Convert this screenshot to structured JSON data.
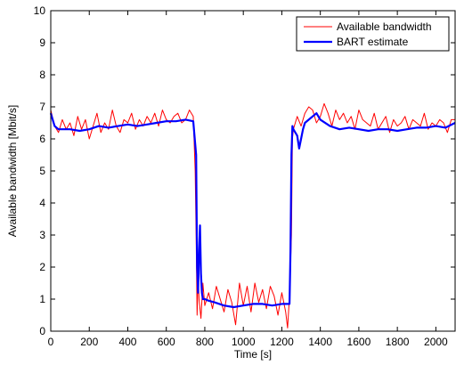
{
  "chart_data": {
    "type": "line",
    "title": "",
    "xlabel": "Time [s]",
    "ylabel": "Available bandwidth [Mbit/s]",
    "xlim": [
      0,
      2100
    ],
    "ylim": [
      0,
      10
    ],
    "xticks": [
      0,
      200,
      400,
      600,
      800,
      1000,
      1200,
      1400,
      1600,
      1800,
      2000
    ],
    "yticks": [
      0,
      1,
      2,
      3,
      4,
      5,
      6,
      7,
      8,
      9,
      10
    ],
    "grid": false,
    "legend_position": "top-right",
    "series": [
      {
        "name": "Available bandwidth",
        "color": "#ff0000",
        "x": [
          0,
          20,
          40,
          60,
          80,
          100,
          120,
          140,
          160,
          180,
          200,
          220,
          240,
          260,
          280,
          300,
          320,
          340,
          360,
          380,
          400,
          420,
          440,
          460,
          480,
          500,
          520,
          540,
          560,
          580,
          600,
          620,
          640,
          660,
          680,
          700,
          720,
          740,
          750,
          755,
          760,
          765,
          770,
          780,
          790,
          800,
          820,
          840,
          860,
          880,
          900,
          920,
          940,
          960,
          980,
          1000,
          1020,
          1040,
          1060,
          1080,
          1100,
          1120,
          1140,
          1160,
          1180,
          1200,
          1220,
          1230,
          1240,
          1250,
          1255,
          1260,
          1270,
          1280,
          1300,
          1320,
          1340,
          1360,
          1380,
          1400,
          1420,
          1440,
          1460,
          1480,
          1500,
          1520,
          1540,
          1560,
          1580,
          1600,
          1620,
          1640,
          1660,
          1680,
          1700,
          1720,
          1740,
          1760,
          1780,
          1800,
          1820,
          1840,
          1860,
          1880,
          1900,
          1920,
          1940,
          1960,
          1980,
          2000,
          2020,
          2040,
          2060,
          2080,
          2100
        ],
        "y": [
          6.9,
          6.4,
          6.2,
          6.6,
          6.3,
          6.5,
          6.1,
          6.7,
          6.3,
          6.6,
          6.0,
          6.4,
          6.8,
          6.2,
          6.5,
          6.3,
          6.9,
          6.4,
          6.2,
          6.6,
          6.5,
          6.8,
          6.3,
          6.6,
          6.4,
          6.7,
          6.5,
          6.8,
          6.4,
          6.9,
          6.6,
          6.5,
          6.7,
          6.8,
          6.5,
          6.6,
          6.9,
          6.7,
          5.0,
          3.0,
          0.5,
          1.8,
          1.0,
          0.4,
          1.5,
          0.8,
          1.2,
          0.7,
          1.4,
          1.0,
          0.6,
          1.3,
          0.9,
          0.2,
          1.5,
          0.8,
          1.4,
          0.6,
          1.5,
          0.9,
          1.3,
          0.7,
          1.4,
          1.1,
          0.5,
          1.2,
          0.6,
          0.1,
          1.1,
          3.0,
          6.0,
          6.3,
          6.5,
          6.7,
          6.4,
          6.8,
          7.0,
          6.9,
          6.5,
          6.7,
          7.1,
          6.8,
          6.4,
          6.9,
          6.6,
          6.8,
          6.5,
          6.7,
          6.3,
          6.9,
          6.6,
          6.5,
          6.4,
          6.8,
          6.3,
          6.5,
          6.7,
          6.2,
          6.6,
          6.4,
          6.5,
          6.7,
          6.3,
          6.6,
          6.5,
          6.4,
          6.8,
          6.3,
          6.5,
          6.4,
          6.6,
          6.5,
          6.2,
          6.6,
          6.6
        ]
      },
      {
        "name": "BART estimate",
        "color": "#0000ff",
        "x": [
          0,
          10,
          20,
          40,
          60,
          100,
          150,
          200,
          250,
          300,
          350,
          400,
          450,
          500,
          550,
          600,
          650,
          700,
          740,
          755,
          760,
          765,
          770,
          775,
          780,
          785,
          790,
          800,
          820,
          850,
          900,
          950,
          1000,
          1050,
          1100,
          1150,
          1200,
          1240,
          1245,
          1250,
          1255,
          1260,
          1270,
          1280,
          1290,
          1300,
          1310,
          1320,
          1340,
          1380,
          1400,
          1450,
          1500,
          1550,
          1600,
          1650,
          1700,
          1750,
          1800,
          1850,
          1900,
          1950,
          2000,
          2050,
          2100
        ],
        "y": [
          6.8,
          6.6,
          6.4,
          6.3,
          6.3,
          6.3,
          6.25,
          6.3,
          6.4,
          6.35,
          6.4,
          6.45,
          6.4,
          6.45,
          6.5,
          6.55,
          6.55,
          6.6,
          6.55,
          5.5,
          2.0,
          1.2,
          2.5,
          3.3,
          1.8,
          1.2,
          1.0,
          1.0,
          0.95,
          0.9,
          0.8,
          0.75,
          0.8,
          0.85,
          0.85,
          0.8,
          0.85,
          0.85,
          2.5,
          5.5,
          6.4,
          6.3,
          6.2,
          6.1,
          5.7,
          6.0,
          6.3,
          6.5,
          6.6,
          6.8,
          6.6,
          6.4,
          6.3,
          6.35,
          6.3,
          6.25,
          6.3,
          6.3,
          6.25,
          6.3,
          6.35,
          6.35,
          6.4,
          6.35,
          6.5
        ]
      }
    ]
  }
}
